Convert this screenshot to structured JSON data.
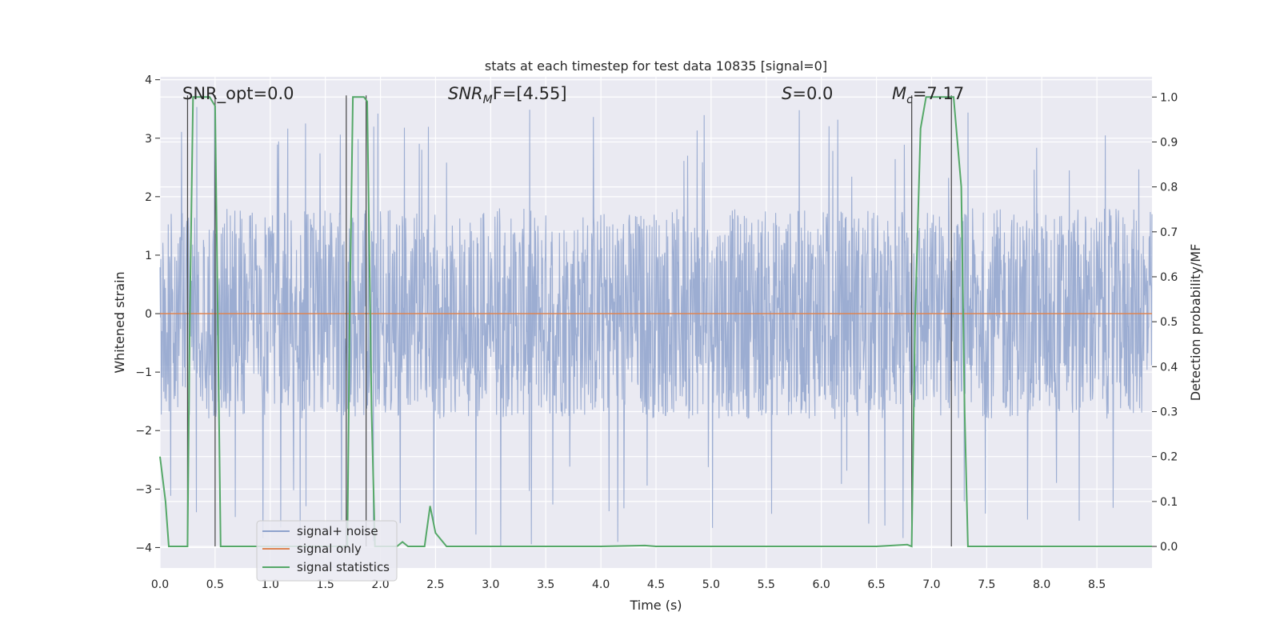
{
  "chart_data": {
    "type": "line",
    "title": "stats at each timestep for test data 10835 [signal=0]",
    "xlabel": "Time (s)",
    "ylabel_left": "Whitened strain",
    "ylabel_right": "Detection probability/MF",
    "xlim": [
      0.0,
      9.0
    ],
    "ylim_left": [
      -4.35,
      4.05
    ],
    "ylim_right": [
      -0.048,
      1.045
    ],
    "xticks": [
      0.0,
      0.5,
      1.0,
      1.5,
      2.0,
      2.5,
      3.0,
      3.5,
      4.0,
      4.5,
      5.0,
      5.5,
      6.0,
      6.5,
      7.0,
      7.5,
      8.0,
      8.5
    ],
    "xtick_labels": [
      "0.0",
      "0.5",
      "1.0",
      "1.5",
      "2.0",
      "2.5",
      "3.0",
      "3.5",
      "4.0",
      "4.5",
      "5.0",
      "5.5",
      "6.0",
      "6.5",
      "7.0",
      "7.5",
      "8.0",
      "8.5"
    ],
    "yticks_left": [
      -4,
      -3,
      -2,
      -1,
      0,
      1,
      2,
      3,
      4
    ],
    "ytick_labels_left": [
      "−4",
      "−3",
      "−2",
      "−1",
      "0",
      "1",
      "2",
      "3",
      "4"
    ],
    "yticks_right": [
      0.0,
      0.1,
      0.2,
      0.3,
      0.4,
      0.5,
      0.6,
      0.7,
      0.8,
      0.9,
      1.0
    ],
    "ytick_labels_right": [
      "0.0",
      "0.1",
      "0.2",
      "0.3",
      "0.4",
      "0.5",
      "0.6",
      "0.7",
      "0.8",
      "0.9",
      "1.0"
    ],
    "grid": true,
    "legend_position": "bottom-left",
    "annotations": {
      "snr_opt": "SNR_opt=0.0",
      "snr_mf_sym": "SNR",
      "snr_mf_sub": "M",
      "snr_mf_rest": "F=[4.55]",
      "s_sym": "S",
      "s_rest": "=0.0",
      "mc_sym": "M",
      "mc_sub": "c",
      "mc_rest": "=7.17"
    },
    "series": [
      {
        "name": "signal+ noise",
        "color": "#8ea2cc",
        "axis": "left",
        "description": "whitened noise, amplitude envelope roughly ±1.8 with spikes up to about 3.6 and down to about -4.0",
        "envelope": [
          -1.8,
          1.8
        ],
        "extremes": [
          -4.0,
          3.6
        ]
      },
      {
        "name": "signal only",
        "color": "#dd8452",
        "axis": "left",
        "x": [
          0.0,
          9.0
        ],
        "y": [
          0.0,
          0.0
        ]
      },
      {
        "name": "signal statistics",
        "color": "#55a868",
        "axis": "right",
        "x": [
          0.0,
          0.05,
          0.08,
          0.12,
          0.2,
          0.25,
          0.27,
          0.3,
          0.4,
          0.45,
          0.5,
          0.55,
          0.6,
          0.9,
          1.2,
          1.5,
          1.7,
          1.72,
          1.75,
          1.85,
          1.88,
          1.92,
          1.95,
          2.0,
          2.15,
          2.2,
          2.25,
          2.4,
          2.45,
          2.5,
          2.6,
          3.5,
          4.0,
          4.4,
          4.5,
          5.0,
          6.0,
          6.5,
          6.78,
          6.82,
          6.85,
          6.9,
          6.95,
          7.0,
          7.15,
          7.2,
          7.27,
          7.3,
          7.33,
          7.4,
          8.0,
          9.0
        ],
        "y": [
          0.2,
          0.1,
          0.0,
          0.0,
          0.0,
          0.0,
          0.5,
          1.0,
          1.0,
          1.0,
          0.98,
          0.0,
          0.0,
          0.0,
          0.0,
          0.0,
          0.0,
          0.5,
          1.0,
          1.0,
          0.99,
          0.3,
          0.0,
          0.0,
          0.0,
          0.01,
          0.0,
          0.0,
          0.09,
          0.03,
          0.0,
          0.0,
          0.0,
          0.002,
          0.0,
          0.0,
          0.0,
          0.0,
          0.004,
          0.0,
          0.5,
          0.93,
          1.0,
          1.0,
          1.0,
          1.0,
          0.8,
          0.3,
          0.0,
          0.0,
          0.0,
          0.0
        ]
      }
    ],
    "event_lines": [
      0.25,
      0.5,
      1.69,
      1.87,
      6.82,
      7.18
    ]
  }
}
